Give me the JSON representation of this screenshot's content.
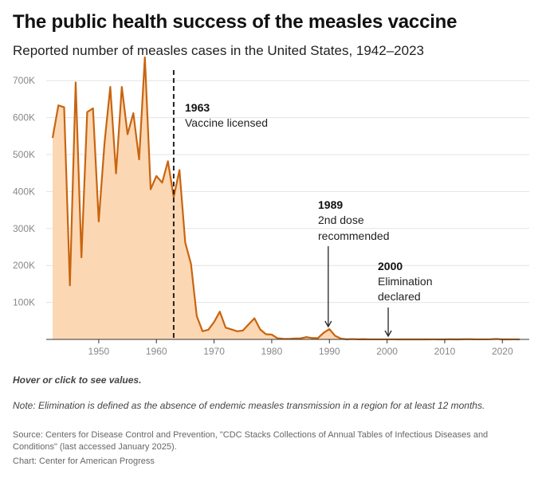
{
  "header": {
    "title": "The public health success of the measles vaccine",
    "subtitle": "Reported number of measles cases in the United States, 1942–2023"
  },
  "chart_data": {
    "type": "area",
    "title": "The public health success of the measles vaccine",
    "subtitle": "Reported number of measles cases in the United States, 1942–2023",
    "xlim": [
      1942,
      2023
    ],
    "ylim": [
      0,
      750000
    ],
    "grid": true,
    "x_ticks": [
      1950,
      1960,
      1970,
      1980,
      1990,
      2000,
      2010,
      2020
    ],
    "x_tick_labels": [
      "1950",
      "1960",
      "1970",
      "1980",
      "1990",
      "2000",
      "2010",
      "2020"
    ],
    "y_ticks": [
      100000,
      200000,
      300000,
      400000,
      500000,
      600000,
      700000
    ],
    "y_tick_labels": [
      "100K",
      "200K",
      "300K",
      "400K",
      "500K",
      "600K",
      "700K"
    ],
    "colors": {
      "line": "#c8650f",
      "fill": "#fcd7b3",
      "annotation_line": "#222222",
      "grid": "#e3e3e3"
    },
    "x": [
      1942,
      1943,
      1944,
      1945,
      1946,
      1947,
      1948,
      1949,
      1950,
      1951,
      1952,
      1953,
      1954,
      1955,
      1956,
      1957,
      1958,
      1959,
      1960,
      1961,
      1962,
      1963,
      1964,
      1965,
      1966,
      1967,
      1968,
      1969,
      1970,
      1971,
      1972,
      1973,
      1974,
      1975,
      1976,
      1977,
      1978,
      1979,
      1980,
      1981,
      1982,
      1983,
      1984,
      1985,
      1986,
      1987,
      1988,
      1989,
      1990,
      1991,
      1992,
      1993,
      1994,
      1995,
      1996,
      1997,
      1998,
      1999,
      2000,
      2001,
      2002,
      2003,
      2004,
      2005,
      2006,
      2007,
      2008,
      2009,
      2010,
      2011,
      2012,
      2013,
      2014,
      2015,
      2016,
      2017,
      2018,
      2019,
      2020,
      2021,
      2022,
      2023
    ],
    "values": [
      545000,
      633000,
      628000,
      146000,
      695000,
      222000,
      615000,
      625000,
      319000,
      531000,
      683000,
      449000,
      683000,
      555000,
      612000,
      487000,
      763000,
      406000,
      442000,
      424000,
      482000,
      385000,
      458000,
      262000,
      204000,
      63000,
      22000,
      26000,
      47000,
      75000,
      32000,
      27000,
      22000,
      24000,
      41000,
      57000,
      27000,
      14000,
      13000,
      3000,
      1700,
      1500,
      2600,
      2800,
      6300,
      3700,
      3400,
      18000,
      27800,
      9600,
      2200,
      300,
      950,
      300,
      500,
      140,
      100,
      100,
      86,
      116,
      44,
      56,
      37,
      66,
      55,
      43,
      140,
      71,
      63,
      220,
      55,
      187,
      667,
      188,
      86,
      120,
      375,
      1274,
      13,
      49,
      121,
      59
    ],
    "annotations": [
      {
        "year": "1963",
        "text": "Vaccine licensed"
      },
      {
        "year": "1989",
        "text": "2nd dose recommended",
        "lines": [
          "2nd dose",
          "recommended"
        ]
      },
      {
        "year": "2000",
        "text": "Elimination declared",
        "lines": [
          "Elimination",
          "declared"
        ]
      }
    ]
  },
  "footer": {
    "hover": "Hover or click to see values.",
    "note": "Note: Elimination is defined as the absence of endemic measles transmission in a region for at least 12 months.",
    "source": "Source: Centers for Disease Control and Prevention, \"CDC Stacks Collections of Annual Tables of Infectious Diseases and Conditions\" (last accessed January 2025).",
    "credit": "Chart: Center for American Progress"
  }
}
